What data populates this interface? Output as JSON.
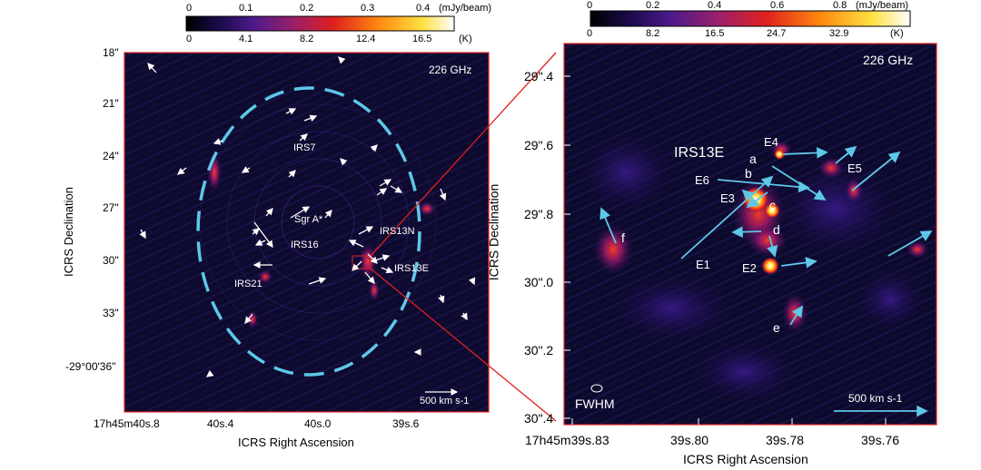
{
  "left_panel": {
    "colorbar": {
      "ticks_top": [
        "0",
        "0.1",
        "0.2",
        "0.3",
        "0.4"
      ],
      "unit_top": "(mJy/beam)",
      "ticks_bottom": [
        "0",
        "4.1",
        "8.2",
        "12.4",
        "16.5"
      ],
      "unit_bottom": "(K)"
    },
    "frequency": "226 GHz",
    "y_ticks": [
      "18\"",
      "21\"",
      "24\"",
      "27\"",
      "30\"",
      "33\"",
      "-29°00'36\""
    ],
    "x_ticks": [
      "17h45m40s.8",
      "40s.4",
      "40s.0",
      "39s.6"
    ],
    "x_axis_title": "ICRS Right Ascension",
    "y_axis_title": "ICRS Declination",
    "sources": [
      "IRS7",
      "Sgr A*",
      "IRS16",
      "IRS13N",
      "IRS13E",
      "IRS21"
    ],
    "scale_label": "500 km s-1"
  },
  "right_panel": {
    "colorbar": {
      "ticks_top": [
        "0",
        "0.2",
        "0.4",
        "0.6",
        "0.8"
      ],
      "unit_top": "(mJy/beam)",
      "ticks_bottom": [
        "0",
        "8.2",
        "16.5",
        "24.7",
        "32.9"
      ],
      "unit_bottom": "(K)"
    },
    "frequency": "226 GHz",
    "title": "IRS13E",
    "y_ticks": [
      "29\".4",
      "29\".6",
      "29\".8",
      "30\".0",
      "30\".2",
      "30\".4"
    ],
    "x_ticks": [
      "17h45m39s.83",
      "39s.80",
      "39s.78",
      "39s.76"
    ],
    "x_axis_title": "ICRS Right Ascension",
    "y_axis_title": "ICRS Declination",
    "labels": [
      "E4",
      "a",
      "E5",
      "b",
      "E6",
      "E3",
      "c",
      "d",
      "f",
      "E1",
      "E2",
      "e"
    ],
    "beam_label": "FWHM",
    "scale_label": "500 km s-1"
  }
}
